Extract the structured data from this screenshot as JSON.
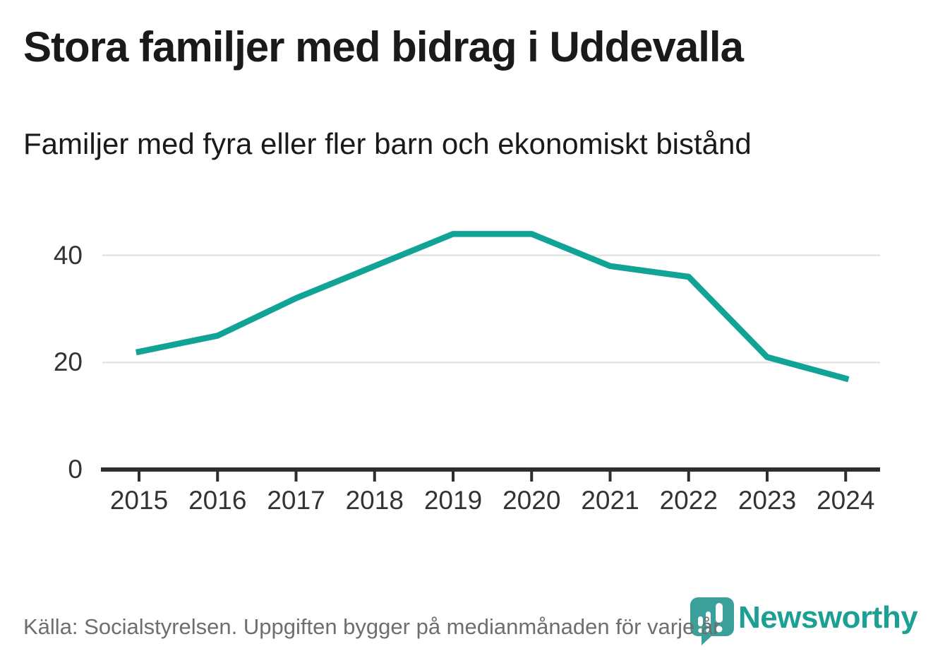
{
  "header": {
    "title": "Stora familjer med bidrag i Uddevalla",
    "subtitle": "Familjer med fyra eller fler barn och ekonomiskt bistånd"
  },
  "footer": {
    "source": "Källa: Socialstyrelsen. Uppgiften bygger på medianmånaden för varje år",
    "brand": "Newsworthy",
    "brand_icon": "newsworthy-pin-barchart-icon"
  },
  "colors": {
    "line": "#10a396",
    "grid": "#e4e4e4",
    "axis": "#2e2e2e",
    "tick_label": "#333333",
    "title_text": "#1a1a1a",
    "footer_text": "#6e6e6e",
    "brand": "#1ba093",
    "background": "#ffffff"
  },
  "chart_data": {
    "type": "line",
    "title": "Stora familjer med bidrag i Uddevalla",
    "subtitle": "Familjer med fyra eller fler barn och ekonomiskt bistånd",
    "categories": [
      "2015",
      "2016",
      "2017",
      "2018",
      "2019",
      "2020",
      "2021",
      "2022",
      "2023",
      "2024"
    ],
    "values": [
      22,
      25,
      32,
      38,
      44,
      44,
      38,
      36,
      21,
      17
    ],
    "xlabel": "",
    "ylabel": "",
    "yticks": [
      0,
      20,
      40
    ],
    "ylim": [
      0,
      47
    ],
    "grid": "horizontal-only",
    "legend": "none"
  }
}
